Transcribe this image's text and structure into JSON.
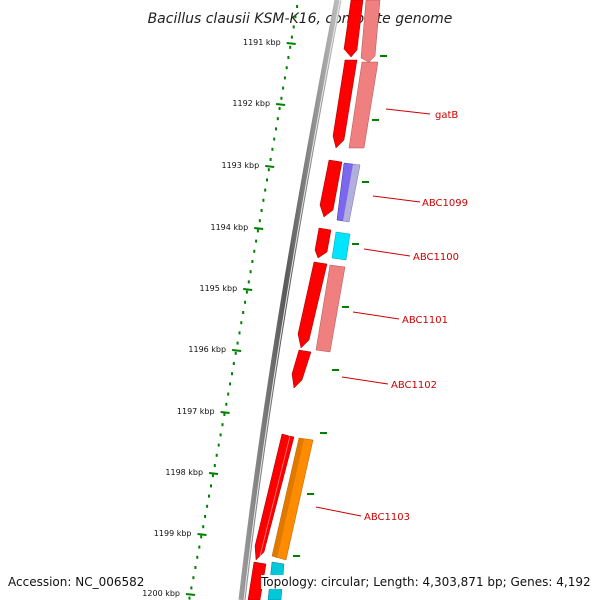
{
  "title": "Bacillus clausii KSM-K16, complete genome",
  "footer": {
    "accession": "Accession: NC_006582",
    "summary": "Topology: circular; Length: 4,303,871 bp; Genes: 4,192"
  },
  "colors": {
    "forward_cds": "#ff0000",
    "reverse_cds": "#f08080",
    "ticks": "#008000",
    "backbone": "#707070",
    "labels": "#cc0000",
    "purple_feature": "#6a5acd",
    "cyan_feature": "#00e5ff",
    "orange_feature": "#ff8c00"
  },
  "kbp_ticks": [
    "1191 kbp",
    "1192 kbp",
    "1193 kbp",
    "1194 kbp",
    "1195 kbp",
    "1196 kbp",
    "1197 kbp",
    "1198 kbp",
    "1199 kbp",
    "1200 kbp"
  ],
  "gene_labels": [
    "gatB",
    "ABC1099",
    "ABC1100",
    "ABC1101",
    "ABC1102",
    "ABC1103"
  ]
}
